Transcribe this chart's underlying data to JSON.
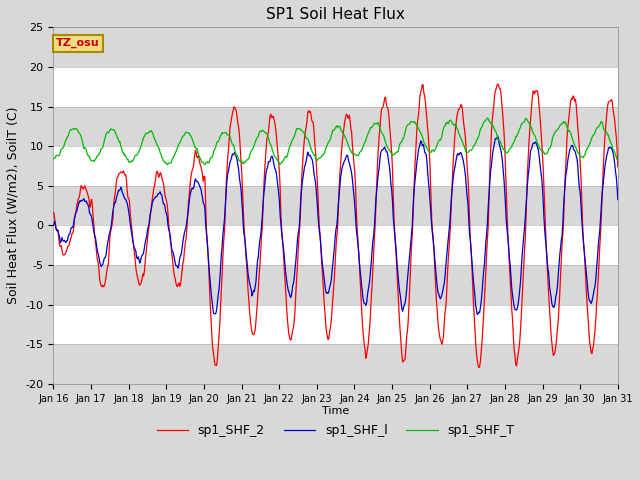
{
  "title": "SP1 Soil Heat Flux",
  "xlabel": "Time",
  "ylabel": "Soil Heat Flux (W/m2), SoilT (C)",
  "ylim": [
    -20,
    25
  ],
  "yticks": [
    -20,
    -15,
    -10,
    -5,
    0,
    5,
    10,
    15,
    20,
    25
  ],
  "xtick_labels": [
    "Jan 16",
    "Jan 17",
    "Jan 18",
    "Jan 19",
    "Jan 20",
    "Jan 21",
    "Jan 22",
    "Jan 23",
    "Jan 24",
    "Jan 25",
    "Jan 26",
    "Jan 27",
    "Jan 28",
    "Jan 29",
    "Jan 30",
    "Jan 31"
  ],
  "line_colors": {
    "shf2": "#FF0000",
    "shf1": "#0000CC",
    "shfT": "#00BB00"
  },
  "legend_labels": [
    "sp1_SHF_2",
    "sp1_SHF_l",
    "sp1_SHF_T"
  ],
  "tz_label": "TZ_osu",
  "bg_color": "#D8D8D8",
  "stripe_color": "#FFFFFF",
  "title_fontsize": 11,
  "axis_fontsize": 8,
  "ylabel_fontsize": 9
}
